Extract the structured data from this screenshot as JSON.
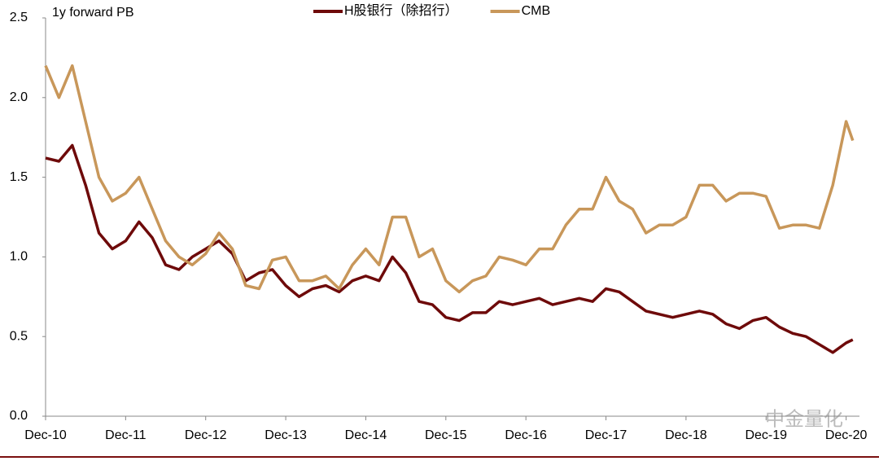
{
  "chart_data": {
    "type": "line",
    "ylabel": "1y forward PB",
    "watermark": "中金量化",
    "x": [
      "2010-12",
      "2011-02",
      "2011-04",
      "2011-06",
      "2011-08",
      "2011-10",
      "2011-12",
      "2012-02",
      "2012-04",
      "2012-06",
      "2012-08",
      "2012-10",
      "2012-12",
      "2013-02",
      "2013-04",
      "2013-06",
      "2013-08",
      "2013-10",
      "2013-12",
      "2014-02",
      "2014-04",
      "2014-06",
      "2014-08",
      "2014-10",
      "2014-12",
      "2015-02",
      "2015-04",
      "2015-06",
      "2015-08",
      "2015-10",
      "2015-12",
      "2016-02",
      "2016-04",
      "2016-06",
      "2016-08",
      "2016-10",
      "2016-12",
      "2017-02",
      "2017-04",
      "2017-06",
      "2017-08",
      "2017-10",
      "2017-12",
      "2018-02",
      "2018-04",
      "2018-06",
      "2018-08",
      "2018-10",
      "2018-12",
      "2019-02",
      "2019-04",
      "2019-06",
      "2019-08",
      "2019-10",
      "2019-12",
      "2020-02",
      "2020-04",
      "2020-06",
      "2020-08",
      "2020-10",
      "2020-12",
      "2021-01"
    ],
    "series": [
      {
        "name": "H股银行（除招行）",
        "color": "#6e0a0a",
        "values": [
          1.62,
          1.6,
          1.7,
          1.45,
          1.15,
          1.05,
          1.1,
          1.22,
          1.12,
          0.95,
          0.92,
          1.0,
          1.05,
          1.1,
          1.02,
          0.85,
          0.9,
          0.92,
          0.82,
          0.75,
          0.8,
          0.82,
          0.78,
          0.85,
          0.88,
          0.85,
          1.0,
          0.9,
          0.72,
          0.7,
          0.62,
          0.6,
          0.65,
          0.65,
          0.72,
          0.7,
          0.72,
          0.74,
          0.7,
          0.72,
          0.74,
          0.72,
          0.8,
          0.78,
          0.72,
          0.66,
          0.64,
          0.62,
          0.64,
          0.66,
          0.64,
          0.58,
          0.55,
          0.6,
          0.62,
          0.56,
          0.52,
          0.5,
          0.45,
          0.4,
          0.46,
          0.48
        ]
      },
      {
        "name": "CMB",
        "color": "#c8975a",
        "values": [
          2.2,
          2.0,
          2.2,
          1.85,
          1.5,
          1.35,
          1.4,
          1.5,
          1.3,
          1.1,
          1.0,
          0.95,
          1.02,
          1.15,
          1.05,
          0.82,
          0.8,
          0.98,
          1.0,
          0.85,
          0.85,
          0.88,
          0.8,
          0.95,
          1.05,
          0.95,
          1.25,
          1.25,
          1.0,
          1.05,
          0.85,
          0.78,
          0.85,
          0.88,
          1.0,
          0.98,
          0.95,
          1.05,
          1.05,
          1.2,
          1.3,
          1.3,
          1.5,
          1.35,
          1.3,
          1.15,
          1.2,
          1.2,
          1.25,
          1.45,
          1.45,
          1.35,
          1.4,
          1.4,
          1.38,
          1.18,
          1.2,
          1.2,
          1.18,
          1.45,
          1.85,
          1.73
        ]
      }
    ],
    "xlim": [
      "2010-12",
      "2021-02"
    ],
    "xticks": [
      {
        "value": "2010-12",
        "label": "Dec-10"
      },
      {
        "value": "2011-12",
        "label": "Dec-11"
      },
      {
        "value": "2012-12",
        "label": "Dec-12"
      },
      {
        "value": "2013-12",
        "label": "Dec-13"
      },
      {
        "value": "2014-12",
        "label": "Dec-14"
      },
      {
        "value": "2015-12",
        "label": "Dec-15"
      },
      {
        "value": "2016-12",
        "label": "Dec-16"
      },
      {
        "value": "2017-12",
        "label": "Dec-17"
      },
      {
        "value": "2018-12",
        "label": "Dec-18"
      },
      {
        "value": "2019-12",
        "label": "Dec-19"
      },
      {
        "value": "2020-12",
        "label": "Dec-20"
      }
    ],
    "ylim": [
      0,
      2.5
    ],
    "yticks": [
      {
        "value": 0,
        "label": "0.0"
      },
      0.5,
      {
        "value": 1,
        "label": "1.0"
      },
      1.5,
      {
        "value": 2,
        "label": "2.0"
      },
      2.5
    ],
    "grid": false,
    "legend": "top"
  }
}
